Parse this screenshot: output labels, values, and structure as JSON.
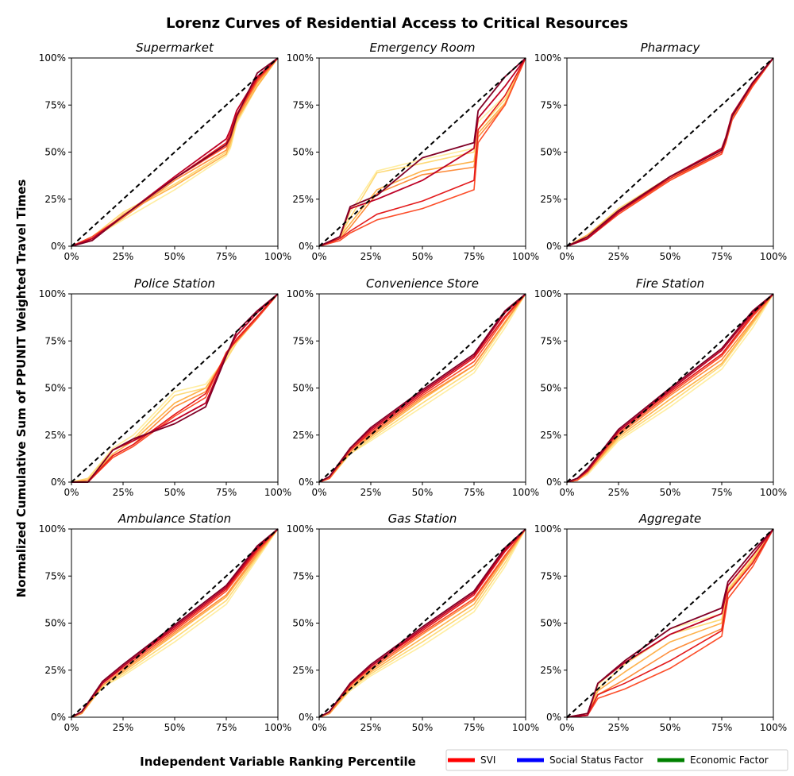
{
  "figure": {
    "title": "Lorenz Curves of Residential Access to Critical Resources",
    "xlabel": "Independent Variable Ranking Percentile",
    "ylabel": "Normalized Cumulative Sum of PPUNIT Weighted Travel Times",
    "tick_labels": [
      "0%",
      "25%",
      "50%",
      "75%",
      "100%"
    ]
  },
  "legend": [
    {
      "name": "SVI",
      "color": "#ff0000"
    },
    {
      "name": "Social Status Factor",
      "color": "#0000ff"
    },
    {
      "name": "Economic  Factor",
      "color": "#008000"
    }
  ],
  "curve_colors": [
    "#ffeda0",
    "#fed976",
    "#feb24c",
    "#fd8d3c",
    "#fc4e2a",
    "#e31a1c",
    "#bd0026",
    "#800026"
  ],
  "chart_data": [
    {
      "type": "line",
      "title": "Supermarket",
      "xlim": [
        0,
        100
      ],
      "ylim": [
        0,
        100
      ],
      "x": [
        0,
        10,
        25,
        50,
        75,
        77,
        80,
        90,
        100
      ],
      "series": [
        {
          "values": [
            0,
            4,
            14,
            30,
            48,
            52,
            65,
            85,
            100
          ]
        },
        {
          "values": [
            0,
            5,
            18,
            33,
            50,
            53,
            66,
            86,
            100
          ]
        },
        {
          "values": [
            0,
            3,
            17,
            32,
            49,
            55,
            67,
            85,
            100
          ]
        },
        {
          "values": [
            0,
            4,
            15,
            35,
            51,
            57,
            68,
            87,
            100
          ]
        },
        {
          "values": [
            0,
            5,
            16,
            36,
            53,
            58,
            69,
            88,
            100
          ]
        },
        {
          "values": [
            0,
            4,
            16,
            36,
            55,
            60,
            70,
            89,
            100
          ]
        },
        {
          "values": [
            0,
            4,
            16,
            37,
            57,
            62,
            72,
            90,
            100
          ]
        },
        {
          "values": [
            0,
            3,
            16,
            36,
            54,
            58,
            69,
            92,
            100
          ]
        }
      ]
    },
    {
      "type": "line",
      "title": "Emergency Room",
      "xlim": [
        0,
        100
      ],
      "ylim": [
        0,
        100
      ],
      "x": [
        0,
        10,
        15,
        28,
        50,
        75,
        77,
        90,
        100
      ],
      "series": [
        {
          "values": [
            0,
            4,
            18,
            40,
            46,
            52,
            66,
            80,
            100
          ]
        },
        {
          "values": [
            0,
            5,
            15,
            39,
            44,
            50,
            62,
            78,
            100
          ]
        },
        {
          "values": [
            0,
            5,
            12,
            30,
            40,
            45,
            60,
            76,
            100
          ]
        },
        {
          "values": [
            0,
            4,
            10,
            28,
            38,
            42,
            58,
            75,
            100
          ]
        },
        {
          "values": [
            0,
            3,
            7,
            14,
            20,
            30,
            55,
            75,
            100
          ]
        },
        {
          "values": [
            0,
            4,
            8,
            17,
            24,
            35,
            62,
            80,
            100
          ]
        },
        {
          "values": [
            0,
            5,
            20,
            25,
            35,
            52,
            68,
            85,
            100
          ]
        },
        {
          "values": [
            0,
            5,
            21,
            27,
            47,
            55,
            72,
            90,
            100
          ]
        }
      ]
    },
    {
      "type": "line",
      "title": "Pharmacy",
      "xlim": [
        0,
        100
      ],
      "ylim": [
        0,
        100
      ],
      "x": [
        0,
        10,
        25,
        50,
        75,
        77,
        80,
        90,
        100
      ],
      "series": [
        {
          "values": [
            0,
            5,
            18,
            36,
            50,
            56,
            69,
            85,
            100
          ]
        },
        {
          "values": [
            0,
            6,
            20,
            37,
            51,
            58,
            70,
            86,
            100
          ]
        },
        {
          "values": [
            0,
            6,
            19,
            36,
            52,
            57,
            70,
            86,
            100
          ]
        },
        {
          "values": [
            0,
            5,
            18,
            35,
            50,
            56,
            68,
            85,
            100
          ]
        },
        {
          "values": [
            0,
            4,
            17,
            35,
            49,
            55,
            67,
            85,
            100
          ]
        },
        {
          "values": [
            0,
            4,
            18,
            36,
            50,
            57,
            69,
            86,
            100
          ]
        },
        {
          "values": [
            0,
            4,
            18,
            37,
            52,
            58,
            70,
            87,
            100
          ]
        },
        {
          "values": [
            0,
            5,
            19,
            37,
            51,
            57,
            69,
            87,
            100
          ]
        }
      ]
    },
    {
      "type": "line",
      "title": "Police Station",
      "xlim": [
        0,
        100
      ],
      "ylim": [
        0,
        100
      ],
      "x": [
        0,
        8,
        20,
        30,
        50,
        65,
        75,
        80,
        90,
        100
      ],
      "series": [
        {
          "values": [
            0,
            2,
            18,
            25,
            48,
            52,
            66,
            75,
            88,
            100
          ]
        },
        {
          "values": [
            0,
            2,
            17,
            23,
            46,
            50,
            65,
            74,
            87,
            100
          ]
        },
        {
          "values": [
            0,
            1,
            15,
            22,
            42,
            50,
            67,
            76,
            88,
            100
          ]
        },
        {
          "values": [
            0,
            1,
            14,
            20,
            40,
            48,
            68,
            76,
            88,
            100
          ]
        },
        {
          "values": [
            0,
            0,
            13,
            19,
            35,
            45,
            69,
            75,
            87,
            100
          ]
        },
        {
          "values": [
            0,
            0,
            14,
            20,
            36,
            47,
            68,
            76,
            88,
            100
          ]
        },
        {
          "values": [
            0,
            0,
            17,
            22,
            33,
            42,
            68,
            78,
            90,
            100
          ]
        },
        {
          "values": [
            0,
            0,
            17,
            23,
            31,
            40,
            67,
            80,
            91,
            100
          ]
        }
      ]
    },
    {
      "type": "line",
      "title": "Convenience Store",
      "xlim": [
        0,
        100
      ],
      "ylim": [
        0,
        100
      ],
      "x": [
        0,
        5,
        15,
        25,
        50,
        75,
        90,
        100
      ],
      "series": [
        {
          "values": [
            0,
            2,
            15,
            22,
            40,
            58,
            82,
            100
          ]
        },
        {
          "values": [
            0,
            2,
            15,
            23,
            42,
            60,
            84,
            100
          ]
        },
        {
          "values": [
            0,
            2,
            16,
            24,
            44,
            62,
            85,
            100
          ]
        },
        {
          "values": [
            0,
            2,
            16,
            25,
            45,
            62,
            85,
            100
          ]
        },
        {
          "values": [
            0,
            2,
            17,
            26,
            46,
            64,
            87,
            100
          ]
        },
        {
          "values": [
            0,
            3,
            17,
            27,
            47,
            66,
            88,
            100
          ]
        },
        {
          "values": [
            0,
            3,
            18,
            28,
            48,
            67,
            90,
            100
          ]
        },
        {
          "values": [
            0,
            3,
            18,
            29,
            49,
            68,
            91,
            100
          ]
        }
      ]
    },
    {
      "type": "line",
      "title": "Fire Station",
      "xlim": [
        0,
        100
      ],
      "ylim": [
        0,
        100
      ],
      "x": [
        0,
        5,
        10,
        25,
        50,
        75,
        90,
        100
      ],
      "series": [
        {
          "values": [
            0,
            1,
            4,
            22,
            40,
            60,
            82,
            100
          ]
        },
        {
          "values": [
            0,
            1,
            5,
            23,
            42,
            62,
            84,
            100
          ]
        },
        {
          "values": [
            0,
            1,
            5,
            24,
            44,
            63,
            85,
            100
          ]
        },
        {
          "values": [
            0,
            1,
            5,
            25,
            46,
            65,
            86,
            100
          ]
        },
        {
          "values": [
            0,
            1,
            6,
            26,
            47,
            67,
            88,
            100
          ]
        },
        {
          "values": [
            0,
            2,
            6,
            27,
            48,
            68,
            89,
            100
          ]
        },
        {
          "values": [
            0,
            2,
            6,
            27,
            49,
            70,
            90,
            100
          ]
        },
        {
          "values": [
            0,
            2,
            7,
            28,
            50,
            71,
            91,
            100
          ]
        }
      ]
    },
    {
      "type": "line",
      "title": "Ambulance Station",
      "xlim": [
        0,
        100
      ],
      "ylim": [
        0,
        100
      ],
      "x": [
        0,
        5,
        15,
        25,
        50,
        75,
        90,
        100
      ],
      "series": [
        {
          "values": [
            0,
            2,
            16,
            22,
            40,
            60,
            84,
            100
          ]
        },
        {
          "values": [
            0,
            2,
            16,
            23,
            42,
            62,
            85,
            100
          ]
        },
        {
          "values": [
            0,
            2,
            17,
            24,
            44,
            64,
            86,
            100
          ]
        },
        {
          "values": [
            0,
            2,
            17,
            25,
            45,
            65,
            87,
            100
          ]
        },
        {
          "values": [
            0,
            3,
            18,
            26,
            46,
            67,
            88,
            100
          ]
        },
        {
          "values": [
            0,
            3,
            18,
            27,
            47,
            68,
            89,
            100
          ]
        },
        {
          "values": [
            0,
            3,
            18,
            27,
            48,
            69,
            90,
            100
          ]
        },
        {
          "values": [
            0,
            3,
            19,
            28,
            49,
            70,
            91,
            100
          ]
        }
      ]
    },
    {
      "type": "line",
      "title": "Gas Station",
      "xlim": [
        0,
        100
      ],
      "ylim": [
        0,
        100
      ],
      "x": [
        0,
        5,
        15,
        25,
        50,
        75,
        90,
        100
      ],
      "series": [
        {
          "values": [
            0,
            2,
            14,
            22,
            38,
            56,
            80,
            100
          ]
        },
        {
          "values": [
            0,
            2,
            15,
            23,
            40,
            58,
            82,
            100
          ]
        },
        {
          "values": [
            0,
            2,
            15,
            24,
            42,
            60,
            84,
            100
          ]
        },
        {
          "values": [
            0,
            2,
            16,
            25,
            44,
            62,
            85,
            100
          ]
        },
        {
          "values": [
            0,
            3,
            17,
            26,
            45,
            63,
            86,
            100
          ]
        },
        {
          "values": [
            0,
            3,
            17,
            27,
            46,
            65,
            88,
            100
          ]
        },
        {
          "values": [
            0,
            3,
            18,
            27,
            47,
            66,
            89,
            100
          ]
        },
        {
          "values": [
            0,
            3,
            18,
            28,
            48,
            67,
            90,
            100
          ]
        }
      ]
    },
    {
      "type": "line",
      "title": "Aggregate",
      "xlim": [
        0,
        100
      ],
      "ylim": [
        0,
        100
      ],
      "x": [
        0,
        10,
        15,
        28,
        50,
        75,
        78,
        90,
        100
      ],
      "series": [
        {
          "values": [
            0,
            2,
            17,
            30,
            47,
            55,
            70,
            85,
            100
          ]
        },
        {
          "values": [
            0,
            2,
            15,
            28,
            44,
            52,
            68,
            84,
            100
          ]
        },
        {
          "values": [
            0,
            2,
            14,
            24,
            40,
            50,
            67,
            83,
            100
          ]
        },
        {
          "values": [
            0,
            1,
            12,
            20,
            35,
            47,
            66,
            82,
            100
          ]
        },
        {
          "values": [
            0,
            1,
            10,
            15,
            26,
            43,
            63,
            80,
            100
          ]
        },
        {
          "values": [
            0,
            1,
            12,
            18,
            30,
            46,
            66,
            82,
            100
          ]
        },
        {
          "values": [
            0,
            1,
            18,
            29,
            44,
            55,
            70,
            86,
            100
          ]
        },
        {
          "values": [
            0,
            2,
            18,
            30,
            47,
            58,
            72,
            88,
            100
          ]
        }
      ]
    }
  ]
}
